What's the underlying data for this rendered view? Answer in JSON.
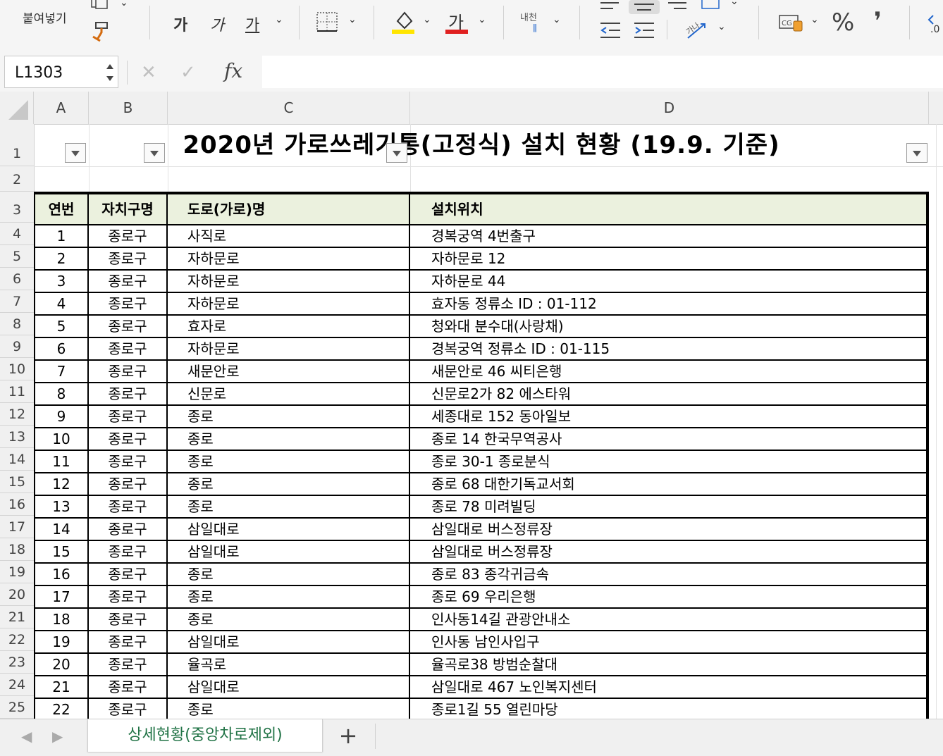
{
  "ribbon": {
    "paste_label": "붙여넣기",
    "bold_glyph": "가",
    "italic_glyph": "가",
    "underline_glyph": "가",
    "font_color_glyph": "가",
    "orientation_glyph": "내천",
    "percent_glyph": "%",
    "comma_glyph": "❜",
    "highlight_color": "#ffe500",
    "font_color": "#e02020"
  },
  "formula_bar": {
    "name_box": "L1303",
    "cancel_glyph": "✕",
    "enter_glyph": "✓",
    "fx_glyph": "fx",
    "value": ""
  },
  "columns": [
    "A",
    "B",
    "C",
    "D"
  ],
  "rows": [
    "1",
    "2",
    "3",
    "4",
    "5",
    "6",
    "7",
    "8",
    "9",
    "10",
    "11",
    "12",
    "13",
    "14",
    "15",
    "16",
    "17",
    "18",
    "19",
    "20",
    "21",
    "22",
    "23",
    "24",
    "25"
  ],
  "sheet": {
    "title": "2020년 가로쓰레기통(고정식) 설치 현황 (19.9. 기준)",
    "headers": [
      "연번",
      "자치구명",
      "도로(가로)명",
      "설치위치"
    ],
    "data": [
      [
        "1",
        "종로구",
        "사직로",
        "경복궁역 4번출구"
      ],
      [
        "2",
        "종로구",
        "자하문로",
        "자하문로 12"
      ],
      [
        "3",
        "종로구",
        "자하문로",
        "자하문로 44"
      ],
      [
        "4",
        "종로구",
        "자하문로",
        "효자동 정류소 ID : 01-112"
      ],
      [
        "5",
        "종로구",
        "효자로",
        "청와대 분수대(사랑채)"
      ],
      [
        "6",
        "종로구",
        "자하문로",
        "경복궁역 정류소 ID : 01-115"
      ],
      [
        "7",
        "종로구",
        "새문안로",
        "새문안로 46 씨티은행"
      ],
      [
        "8",
        "종로구",
        "신문로",
        "신문로2가 82 에스타워"
      ],
      [
        "9",
        "종로구",
        "종로",
        "세종대로 152 동아일보"
      ],
      [
        "10",
        "종로구",
        "종로",
        "종로 14 한국무역공사"
      ],
      [
        "11",
        "종로구",
        "종로",
        "종로 30-1 종로분식"
      ],
      [
        "12",
        "종로구",
        "종로",
        "종로 68 대한기독교서회"
      ],
      [
        "13",
        "종로구",
        "종로",
        "종로 78 미려빌딩"
      ],
      [
        "14",
        "종로구",
        "삼일대로",
        "삼일대로 버스정류장"
      ],
      [
        "15",
        "종로구",
        "삼일대로",
        "삼일대로 버스정류장"
      ],
      [
        "16",
        "종로구",
        "종로",
        "종로 83 종각귀금속"
      ],
      [
        "17",
        "종로구",
        "종로",
        "종로 69 우리은행"
      ],
      [
        "18",
        "종로구",
        "종로",
        "인사동14길 관광안내소"
      ],
      [
        "19",
        "종로구",
        "삼일대로",
        "인사동 남인사입구"
      ],
      [
        "20",
        "종로구",
        "율곡로",
        "율곡로38 방범순찰대"
      ],
      [
        "21",
        "종로구",
        "삼일대로",
        "삼일대로 467 노인복지센터"
      ],
      [
        "22",
        "종로구",
        "종로",
        "종로1길 55 열린마당"
      ]
    ]
  },
  "tabs": {
    "prev_glyph": "◀",
    "next_glyph": "▶",
    "active_sheet": "상세현황(중앙차로제외)",
    "add_glyph": "+"
  },
  "colors": {
    "header_fill": "#ebf1de",
    "accent": "#217346"
  }
}
